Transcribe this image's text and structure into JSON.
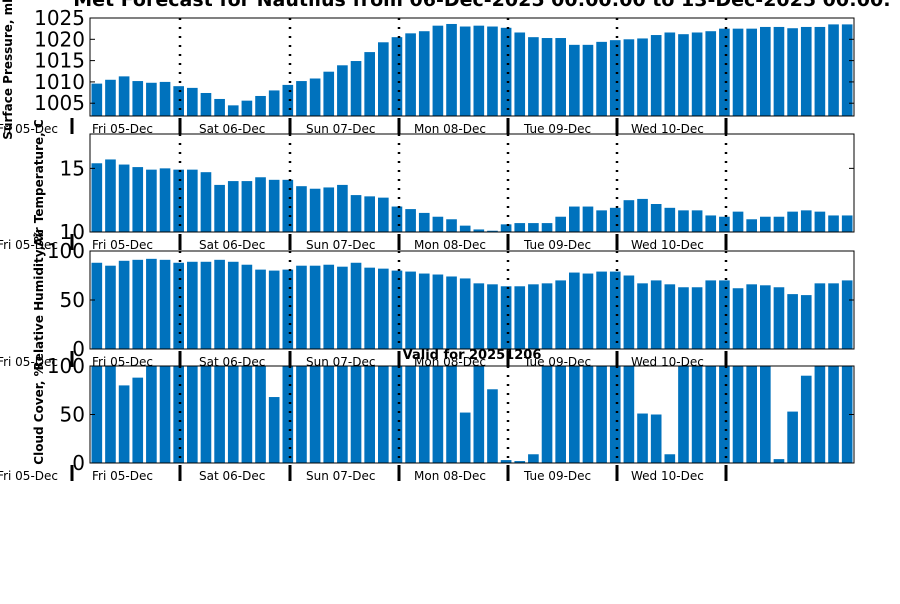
{
  "colors": {
    "bar": "#0072bd",
    "axis": "#000000",
    "background": "#ffffff"
  },
  "chart_data": {
    "type": "bar",
    "title": "Met Forecast for Nautilus from 06-Dec-2025 00:00:00 to 13-Dec-2025 00:00:",
    "day_labels": [
      "Fri 05-Dec",
      "Sat 06-Dec",
      "Sun 07-Dec",
      "Mon 08-Dec",
      "Tue 09-Dec",
      "Wed 10-Dec"
    ],
    "edge_label": "Fri 05-Dec",
    "grid": false,
    "panels": [
      {
        "ylabel": "Surface Pressure, mb",
        "ylim": [
          1002,
          1025
        ],
        "yticks": [
          1005,
          1010,
          1015,
          1020,
          1025
        ],
        "subtitle": "",
        "values": [
          1009.6,
          1010.5,
          1011.3,
          1010.2,
          1009.8,
          1010.0,
          1009.0,
          1008.6,
          1007.4,
          1006.0,
          1004.5,
          1005.6,
          1006.7,
          1008.0,
          1009.3,
          1010.2,
          1010.8,
          1012.4,
          1013.9,
          1014.9,
          1017.0,
          1019.3,
          1020.5,
          1021.4,
          1021.9,
          1023.2,
          1023.6,
          1023.0,
          1023.2,
          1023.0,
          1022.7,
          1021.6,
          1020.5,
          1020.3,
          1020.3,
          1018.7,
          1018.7,
          1019.4,
          1019.8,
          1020.0,
          1020.2,
          1021.0,
          1021.6,
          1021.2,
          1021.6,
          1021.9,
          1022.5,
          1022.5,
          1022.5,
          1022.9,
          1022.9,
          1022.6,
          1022.9,
          1022.9,
          1023.5,
          1023.5
        ]
      },
      {
        "ylabel": "Air Temperature, C",
        "ylim": [
          10,
          17.7
        ],
        "yticks": [
          10,
          15
        ],
        "subtitle": "",
        "values": [
          15.4,
          15.7,
          15.3,
          15.1,
          14.9,
          15.0,
          14.9,
          14.9,
          14.7,
          13.7,
          14.0,
          14.0,
          14.3,
          14.1,
          14.1,
          13.6,
          13.4,
          13.5,
          13.7,
          12.9,
          12.8,
          12.7,
          12.0,
          11.8,
          11.5,
          11.2,
          11.0,
          10.5,
          10.2,
          10.1,
          10.6,
          10.7,
          10.7,
          10.7,
          11.2,
          12.0,
          12.0,
          11.7,
          11.9,
          12.5,
          12.6,
          12.2,
          11.9,
          11.7,
          11.7,
          11.3,
          11.2,
          11.6,
          11.0,
          11.2,
          11.2,
          11.6,
          11.7,
          11.6,
          11.3,
          11.3
        ]
      },
      {
        "ylabel": "Relative Humidity, %",
        "ylim": [
          0,
          100
        ],
        "yticks": [
          0,
          50,
          100
        ],
        "subtitle": "",
        "values": [
          88,
          85,
          90,
          91,
          92,
          91,
          88,
          89,
          89,
          91,
          89,
          86,
          81,
          80,
          81,
          85,
          85,
          86,
          84,
          88,
          83,
          82,
          80,
          79,
          77,
          76,
          74,
          72,
          67,
          66,
          64,
          64,
          66,
          67,
          70,
          78,
          77,
          79,
          79,
          75,
          67,
          70,
          66,
          63,
          63,
          70,
          70,
          62,
          66,
          65,
          63,
          56,
          55,
          67,
          67,
          70
        ]
      },
      {
        "ylabel": "Cloud Cover, %",
        "ylim": [
          0,
          100
        ],
        "yticks": [
          0,
          50,
          100
        ],
        "subtitle": "Valid for 20251206",
        "values": [
          100,
          100,
          80,
          88,
          100,
          100,
          100,
          100,
          100,
          100,
          100,
          100,
          100,
          68,
          100,
          100,
          100,
          100,
          100,
          100,
          100,
          100,
          100,
          100,
          100,
          100,
          100,
          52,
          100,
          76,
          3,
          2,
          9,
          100,
          100,
          100,
          100,
          100,
          100,
          100,
          51,
          50,
          9,
          100,
          100,
          100,
          100,
          100,
          100,
          100,
          4,
          53,
          90,
          100,
          100,
          100
        ]
      }
    ]
  }
}
